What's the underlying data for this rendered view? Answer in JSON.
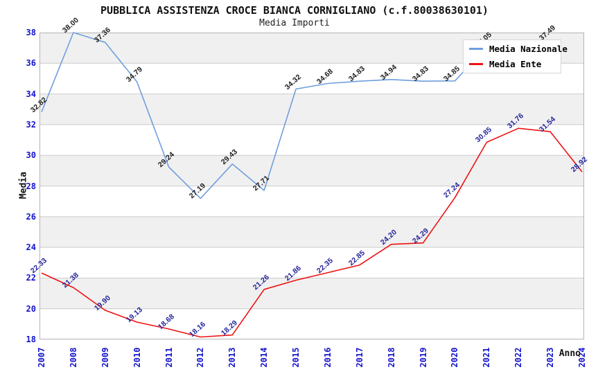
{
  "header": {
    "title": "PUBBLICA ASSISTENZA CROCE BIANCA CORNIGLIANO (c.f.80038630101)",
    "subtitle": "Media Importi"
  },
  "axes": {
    "x_title": "Anno",
    "y_title": "Media",
    "y_ticks": [
      18,
      20,
      22,
      24,
      26,
      28,
      30,
      32,
      34,
      36,
      38
    ],
    "x_ticks": [
      "2007",
      "2008",
      "2009",
      "2010",
      "2011",
      "2012",
      "2013",
      "2014",
      "2015",
      "2016",
      "2017",
      "2018",
      "2019",
      "2020",
      "2021",
      "2022",
      "2023",
      "2024"
    ]
  },
  "legend": {
    "position": "top-right",
    "items": [
      {
        "label": "Media Nazionale",
        "color": "#6e9edd"
      },
      {
        "label": "Media Ente",
        "color": "#ee1111"
      }
    ]
  },
  "chart_data": {
    "type": "line",
    "title": "PUBBLICA ASSISTENZA CROCE BIANCA CORNIGLIANO (c.f.80038630101)",
    "subtitle": "Media Importi",
    "xlabel": "Anno",
    "ylabel": "Media",
    "ylim": [
      18,
      38
    ],
    "ytick_step": 2,
    "grid": "horizontal",
    "background_bands": "alternating gray bands every 2 units (gray on 20-22, 24-26, 28-30, 32-34, 36-38)",
    "legend_position": "top-right inside plot",
    "categories": [
      "2007",
      "2008",
      "2009",
      "2010",
      "2011",
      "2012",
      "2013",
      "2014",
      "2015",
      "2016",
      "2017",
      "2018",
      "2019",
      "2020",
      "2021",
      "2022",
      "2023",
      "2024"
    ],
    "series": [
      {
        "name": "Media Nazionale",
        "line_color": "#6e9edd",
        "label_color": "#1c1c1c",
        "values": [
          32.82,
          38.0,
          37.36,
          34.79,
          29.24,
          27.19,
          29.43,
          27.71,
          34.32,
          34.68,
          34.83,
          34.94,
          34.83,
          34.85,
          37.05,
          37.3,
          37.49,
          null
        ],
        "hidden_label_indexes": [
          15,
          17
        ],
        "note": "2022 point and its label are occluded by the legend box (value estimated 37.30 for line continuity); series shows no 2024 point"
      },
      {
        "name": "Media Ente",
        "line_color": "#ee1111",
        "label_color": "#22229a",
        "values": [
          22.33,
          21.38,
          19.9,
          19.13,
          18.68,
          18.16,
          18.29,
          21.26,
          21.86,
          22.35,
          22.85,
          24.2,
          24.29,
          27.24,
          30.85,
          31.76,
          31.54,
          28.92
        ],
        "hidden_label_indexes": []
      }
    ]
  },
  "style": {
    "band_color": "#f0f0f0",
    "grid_color": "#cccccc",
    "frame_color": "#b3b3b3",
    "tick_label_color": "#1313cd"
  }
}
